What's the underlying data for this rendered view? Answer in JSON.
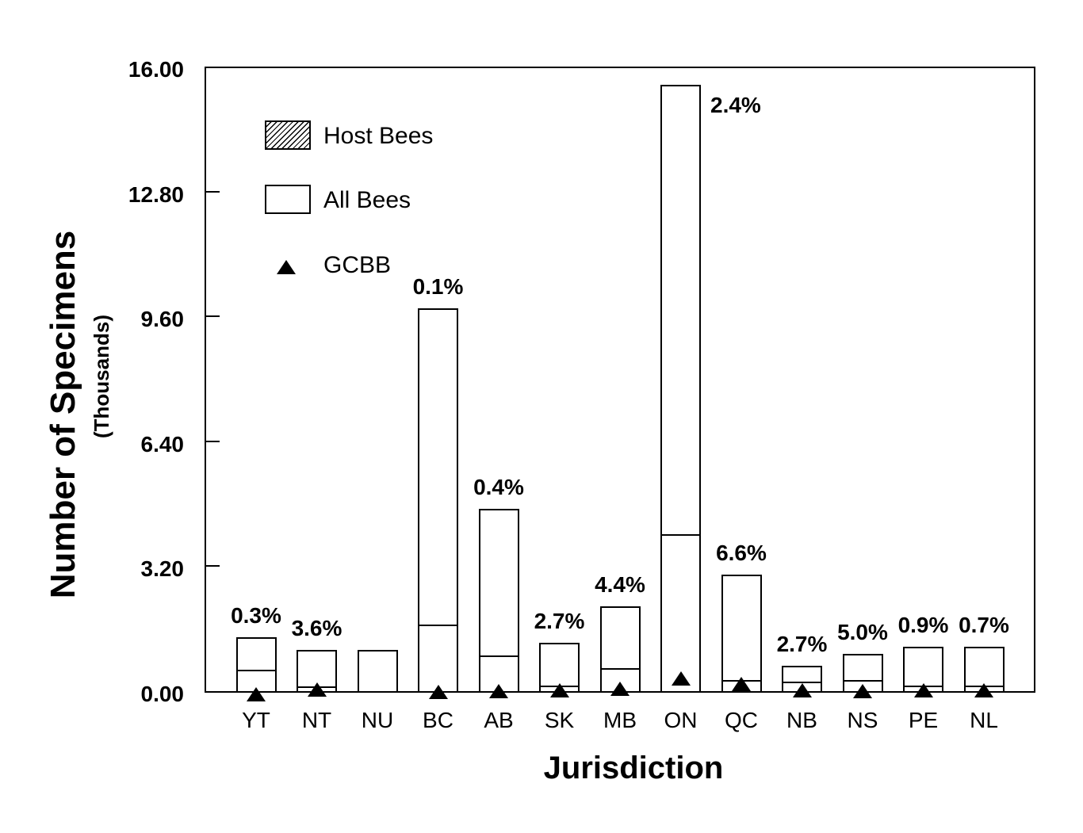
{
  "figure": {
    "background_color": "#ffffff",
    "ink_color": "#000000"
  },
  "chart_data": {
    "type": "bar",
    "title": "",
    "xlabel": "Jurisdiction",
    "ylabel": "Number of Specimens",
    "ylabel_sub": "(Thousands)",
    "ylim": [
      0,
      16
    ],
    "y_ticks": [
      "0.00",
      "3.20",
      "6.40",
      "9.60",
      "12.80",
      "16.00"
    ],
    "grid": false,
    "legend_position": "top-left-inside",
    "legend": [
      {
        "label": "Host Bees",
        "marker": "hatched-box"
      },
      {
        "label": "All Bees",
        "marker": "open-box"
      },
      {
        "label": "GCBB",
        "marker": "filled-triangle"
      }
    ],
    "categories": [
      "YT",
      "NT",
      "NU",
      "BC",
      "AB",
      "SK",
      "MB",
      "ON",
      "QC",
      "NB",
      "NS",
      "PE",
      "NL"
    ],
    "series": [
      {
        "name": "All Bees",
        "style": "open-bar",
        "values": [
          1.38,
          1.05,
          1.05,
          9.8,
          4.68,
          1.23,
          2.18,
          15.53,
          2.98,
          0.64,
          0.96,
          1.13,
          1.13
        ]
      },
      {
        "name": "Host Bees",
        "style": "hatched-bar",
        "values": [
          0.55,
          0.12,
          0,
          1.7,
          0.92,
          0.14,
          0.58,
          4.03,
          0.28,
          0.24,
          0.29,
          0.14,
          0.14
        ]
      },
      {
        "name": "GCBB",
        "style": "triangle-marker",
        "values": [
          -0.08,
          0.04,
          null,
          -0.02,
          0,
          0.02,
          0.07,
          0.33,
          0.19,
          0.03,
          0,
          0.02,
          0.02
        ]
      }
    ],
    "bar_labels": [
      "0.3%",
      "3.6%",
      "",
      "0.1%",
      "0.4%",
      "2.7%",
      "4.4%",
      "2.4%",
      "6.6%",
      "2.7%",
      "5.0%",
      "0.9%",
      "0.7%"
    ],
    "bar_label_positions": [
      "above",
      "above",
      "none",
      "above",
      "above",
      "above",
      "above",
      "right",
      "above",
      "above",
      "above",
      "above",
      "above"
    ]
  }
}
